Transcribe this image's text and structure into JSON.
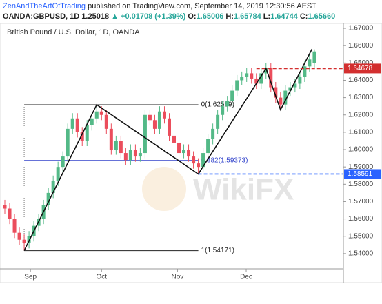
{
  "header": {
    "author": "ZenAndTheArtOfTrading",
    "published": " published on TradingView.com, September 14, 2019 12:30:56 AEST",
    "symbol": "OANDA:GBPUSD, 1D",
    "price": "1.25018",
    "change": "▲ +0.01708 (+1.39%)",
    "ohlc": [
      {
        "label": "O:",
        "value": "1.65006"
      },
      {
        "label": "H:",
        "value": "1.65784"
      },
      {
        "label": "L:",
        "value": "1.64744"
      },
      {
        "label": "C:",
        "value": "1.65660"
      }
    ]
  },
  "chart_data": {
    "type": "candlestick",
    "title": "British Pound / U.S. Dollar, 1D, OANDA",
    "watermark": "WikiFX",
    "up_color": "#53b987",
    "down_color": "#eb4d5c",
    "open": [
      1.568,
      1.566,
      1.56,
      1.552,
      1.548,
      1.546,
      1.55,
      1.556,
      1.56,
      1.568,
      1.575,
      1.582,
      1.59,
      1.596,
      1.612,
      1.618,
      1.61,
      1.605,
      1.614,
      1.618,
      1.622,
      1.62,
      1.612,
      1.6,
      1.605,
      1.598,
      1.594,
      1.6,
      1.596,
      1.598,
      1.62,
      1.617,
      1.612,
      1.622,
      1.618,
      1.608,
      1.604,
      1.598,
      1.6,
      1.596,
      1.592,
      1.59,
      1.598,
      1.606,
      1.612,
      1.62,
      1.625,
      1.628,
      1.634,
      1.64,
      1.642,
      1.644,
      1.641,
      1.638,
      1.644,
      1.647,
      1.636,
      1.63,
      1.626,
      1.634,
      1.636,
      1.638,
      1.642,
      1.648,
      1.65006
    ],
    "high": [
      1.571,
      1.569,
      1.563,
      1.555,
      1.551,
      1.553,
      1.559,
      1.563,
      1.571,
      1.578,
      1.585,
      1.593,
      1.599,
      1.615,
      1.621,
      1.621,
      1.613,
      1.617,
      1.621,
      1.6259,
      1.625,
      1.623,
      1.615,
      1.608,
      1.608,
      1.601,
      1.603,
      1.603,
      1.601,
      1.623,
      1.623,
      1.62,
      1.625,
      1.625,
      1.621,
      1.611,
      1.607,
      1.603,
      1.603,
      1.599,
      1.595,
      1.601,
      1.609,
      1.615,
      1.623,
      1.628,
      1.631,
      1.637,
      1.643,
      1.645,
      1.647,
      1.647,
      1.644,
      1.647,
      1.65,
      1.65,
      1.639,
      1.633,
      1.637,
      1.639,
      1.641,
      1.645,
      1.651,
      1.655,
      1.65784
    ],
    "low": [
      1.563,
      1.557,
      1.549,
      1.545,
      1.5417,
      1.543,
      1.547,
      1.553,
      1.557,
      1.565,
      1.572,
      1.579,
      1.587,
      1.593,
      1.609,
      1.607,
      1.602,
      1.602,
      1.611,
      1.615,
      1.617,
      1.609,
      1.597,
      1.597,
      1.595,
      1.591,
      1.591,
      1.593,
      1.593,
      1.595,
      1.614,
      1.609,
      1.609,
      1.615,
      1.605,
      1.601,
      1.595,
      1.595,
      1.593,
      1.589,
      1.5859,
      1.587,
      1.595,
      1.603,
      1.609,
      1.617,
      1.622,
      1.625,
      1.631,
      1.637,
      1.639,
      1.638,
      1.635,
      1.635,
      1.641,
      1.633,
      1.627,
      1.623,
      1.623,
      1.631,
      1.633,
      1.635,
      1.639,
      1.645,
      1.64744
    ],
    "close": [
      1.566,
      1.56,
      1.552,
      1.548,
      1.546,
      1.55,
      1.556,
      1.56,
      1.568,
      1.575,
      1.582,
      1.59,
      1.596,
      1.612,
      1.618,
      1.61,
      1.605,
      1.614,
      1.618,
      1.622,
      1.62,
      1.612,
      1.6,
      1.605,
      1.598,
      1.594,
      1.6,
      1.596,
      1.598,
      1.62,
      1.617,
      1.612,
      1.622,
      1.618,
      1.608,
      1.604,
      1.598,
      1.6,
      1.596,
      1.592,
      1.59,
      1.598,
      1.606,
      1.612,
      1.62,
      1.625,
      1.628,
      1.634,
      1.64,
      1.642,
      1.644,
      1.641,
      1.638,
      1.644,
      1.647,
      1.636,
      1.63,
      1.626,
      1.634,
      1.636,
      1.638,
      1.642,
      1.648,
      1.652,
      1.6566
    ],
    "xlim": [
      -1,
      70
    ],
    "xticks": [
      {
        "value": 5.3,
        "label": "Sep"
      },
      {
        "value": 20,
        "label": "Oct"
      },
      {
        "value": 35.7,
        "label": "Nov"
      },
      {
        "value": 49.9,
        "label": "Dec"
      }
    ],
    "ylim": [
      1.5312,
      1.6728
    ],
    "yticks": [
      {
        "value": 1.54,
        "label": "1.54000"
      },
      {
        "value": 1.55,
        "label": "1.55000"
      },
      {
        "value": 1.56,
        "label": "1.56000"
      },
      {
        "value": 1.57,
        "label": "1.57000"
      },
      {
        "value": 1.58,
        "label": "1.58000"
      },
      {
        "value": 1.59,
        "label": "1.59000"
      },
      {
        "value": 1.6,
        "label": "1.60000"
      },
      {
        "value": 1.61,
        "label": "1.61000"
      },
      {
        "value": 1.62,
        "label": "1.62000"
      },
      {
        "value": 1.63,
        "label": "1.63000"
      },
      {
        "value": 1.64,
        "label": "1.64000"
      },
      {
        "value": 1.65,
        "label": "1.65000"
      },
      {
        "value": 1.66,
        "label": "1.66000"
      },
      {
        "value": 1.67,
        "label": "1.67000"
      }
    ],
    "zigzag": {
      "x": [
        4,
        19,
        40,
        54,
        57,
        63.5
      ],
      "y": [
        1.54171,
        1.62589,
        1.5859,
        1.6468,
        1.623,
        1.658
      ]
    },
    "fib": {
      "x": [
        4,
        40
      ],
      "levels": [
        {
          "value": 1.62589,
          "label": "0(1.62589)",
          "color": "#222222"
        },
        {
          "value": 1.59373,
          "label": "0.382(1.59373)",
          "color": "#3344cc"
        },
        {
          "value": 1.54171,
          "label": "1(1.54171)",
          "color": "#222222"
        }
      ]
    },
    "hlines": [
      {
        "value": 1.64678,
        "x0": 52,
        "color": "#d32f2f"
      },
      {
        "value": 1.58591,
        "x0": 40,
        "color": "#2962ff"
      }
    ]
  }
}
